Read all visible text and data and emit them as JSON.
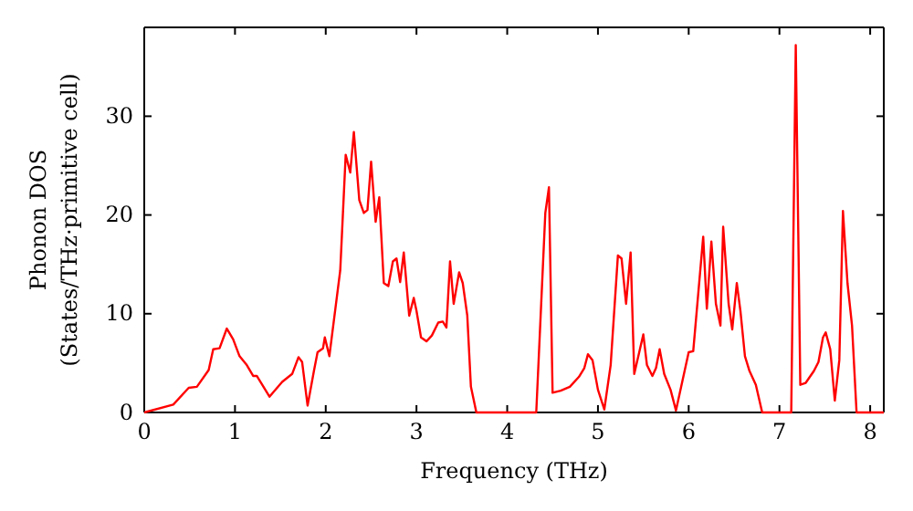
{
  "chart_data": {
    "type": "line",
    "xlabel": "Frequency (THz)",
    "ylabel": "Phonon DOS\n(States/THz·primitive cell)",
    "xlim": [
      0,
      8.15
    ],
    "ylim": [
      0,
      39
    ],
    "xticks": [
      0,
      1,
      2,
      3,
      4,
      5,
      6,
      7,
      8
    ],
    "yticks": [
      0,
      10,
      20,
      30
    ],
    "grid": false,
    "marker": "none",
    "line_style": "solid",
    "series": [
      {
        "color": "#ff0000",
        "x": [
          0,
          0.32,
          0.49,
          0.58,
          0.71,
          0.76,
          0.83,
          0.91,
          0.98,
          1.05,
          1.13,
          1.2,
          1.24,
          1.38,
          1.52,
          1.63,
          1.7,
          1.74,
          1.8,
          1.87,
          1.91,
          1.97,
          1.99,
          2.04,
          2.16,
          2.22,
          2.27,
          2.31,
          2.37,
          2.42,
          2.46,
          2.5,
          2.55,
          2.59,
          2.64,
          2.69,
          2.74,
          2.78,
          2.82,
          2.86,
          2.92,
          2.97,
          3.0,
          3.05,
          3.11,
          3.17,
          3.24,
          3.29,
          3.33,
          3.37,
          3.41,
          3.47,
          3.51,
          3.56,
          3.6,
          3.66,
          4.32,
          4.42,
          4.46,
          4.5,
          4.59,
          4.69,
          4.79,
          4.85,
          4.89,
          4.94,
          5.0,
          5.07,
          5.14,
          5.22,
          5.26,
          5.31,
          5.36,
          5.4,
          5.5,
          5.54,
          5.6,
          5.64,
          5.68,
          5.73,
          5.8,
          5.86,
          6.0,
          6.05,
          6.16,
          6.2,
          6.25,
          6.3,
          6.35,
          6.38,
          6.44,
          6.48,
          6.53,
          6.57,
          6.62,
          6.67,
          6.74,
          6.81,
          7.13,
          7.18,
          7.23,
          7.29,
          7.38,
          7.43,
          7.48,
          7.51,
          7.56,
          7.61,
          7.66,
          7.7,
          7.75,
          7.8,
          7.85,
          8.15
        ],
        "values": [
          0,
          0.8,
          2.5,
          2.6,
          4.3,
          6.4,
          6.5,
          8.5,
          7.4,
          5.7,
          4.8,
          3.7,
          3.7,
          1.6,
          3.1,
          3.9,
          5.6,
          5.1,
          0.7,
          4.2,
          6.1,
          6.5,
          7.6,
          5.7,
          14.4,
          26.1,
          24.3,
          28.4,
          21.5,
          20.2,
          20.5,
          25.4,
          19.3,
          21.8,
          13.1,
          12.8,
          15.3,
          15.6,
          13.2,
          16.2,
          9.8,
          11.6,
          10.3,
          7.6,
          7.2,
          7.8,
          9.1,
          9.2,
          8.6,
          15.3,
          11,
          14.2,
          13.1,
          9.8,
          2.6,
          0,
          0,
          20.2,
          22.8,
          2.0,
          2.2,
          2.6,
          3.6,
          4.5,
          5.9,
          5.3,
          2.3,
          0.3,
          4.8,
          15.9,
          15.6,
          11,
          16.2,
          3.9,
          7.9,
          4.8,
          3.7,
          4.5,
          6.4,
          3.9,
          2.3,
          0.2,
          6.1,
          6.2,
          17.8,
          10.5,
          17.3,
          11,
          8.8,
          18.8,
          11,
          8.4,
          13.1,
          10.3,
          5.7,
          4.2,
          2.8,
          0,
          0,
          37.2,
          2.8,
          3.0,
          4.2,
          5.1,
          7.6,
          8.1,
          6.4,
          1.2,
          5.3,
          20.4,
          13.1,
          8.8,
          0,
          0
        ]
      }
    ]
  }
}
